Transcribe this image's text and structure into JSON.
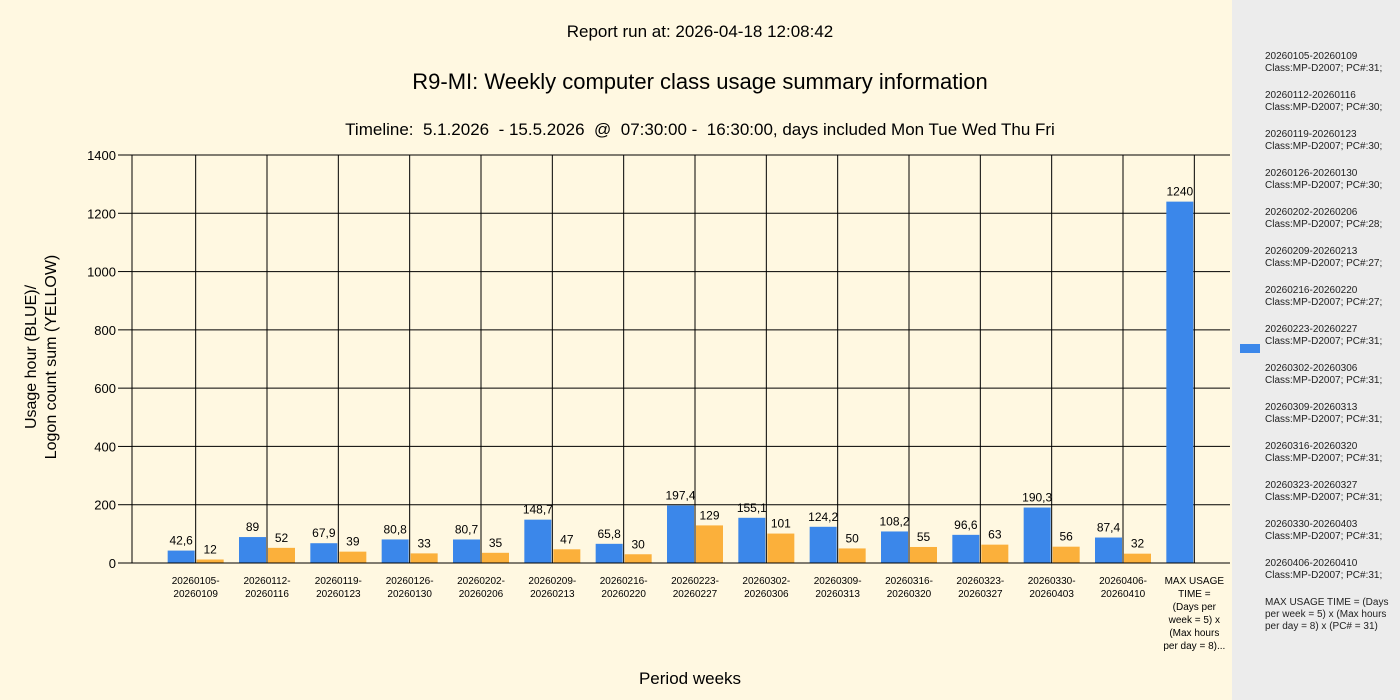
{
  "report_run": "Report run at: 2026-04-18 12:08:42",
  "chart_data": {
    "type": "bar",
    "title": "R9-MI: Weekly computer class usage summary information",
    "subtitle": "Timeline:  5.1.2026  - 15.5.2026  @  07:30:00 -  16:30:00, days included Mon Tue Wed Thu Fri",
    "xlabel": "Period weeks",
    "ylabel_line1": "Usage hour (BLUE)/",
    "ylabel_line2": "Logon count sum (YELLOW)",
    "ylim": [
      0,
      1400
    ],
    "yticks": [
      "0",
      "200",
      "400",
      "600",
      "800",
      "1000",
      "1200",
      "1400"
    ],
    "grid": true,
    "legend_position": "right",
    "colors": {
      "usage": "#3b87ea",
      "logon": "#fbb03b"
    },
    "categories": [
      [
        "20260105-",
        "20260109"
      ],
      [
        "20260112-",
        "20260116"
      ],
      [
        "20260119-",
        "20260123"
      ],
      [
        "20260126-",
        "20260130"
      ],
      [
        "20260202-",
        "20260206"
      ],
      [
        "20260209-",
        "20260213"
      ],
      [
        "20260216-",
        "20260220"
      ],
      [
        "20260223-",
        "20260227"
      ],
      [
        "20260302-",
        "20260306"
      ],
      [
        "20260309-",
        "20260313"
      ],
      [
        "20260316-",
        "20260320"
      ],
      [
        "20260323-",
        "20260327"
      ],
      [
        "20260330-",
        "20260403"
      ],
      [
        "20260406-",
        "20260410"
      ],
      [
        "MAX USAGE",
        "TIME =",
        "(Days per",
        "week = 5) x",
        "(Max hours",
        "per day = 8)..."
      ]
    ],
    "series": [
      {
        "values": [
          42.6,
          89,
          67.9,
          80.8,
          80.7,
          148.7,
          65.8,
          197.4,
          155.1,
          124.2,
          108.2,
          96.6,
          190.3,
          87.4,
          1240
        ],
        "labels": [
          "42,6",
          "89",
          "67,9",
          "80,8",
          "80,7",
          "148,7",
          "65,8",
          "197,4",
          "155,1",
          "124,2",
          "108,2",
          "96,6",
          "190,3",
          "87,4",
          "1240"
        ]
      },
      {
        "values": [
          12,
          52,
          39,
          33,
          35,
          47,
          30,
          129,
          101,
          50,
          55,
          63,
          56,
          32,
          null
        ],
        "labels": [
          "12",
          "52",
          "39",
          "33",
          "35",
          "47",
          "30",
          "129",
          "101",
          "50",
          "55",
          "63",
          "56",
          "32",
          ""
        ]
      }
    ]
  },
  "legend": {
    "items": [
      {
        "period": "20260105-20260109",
        "info": "Class:MP-D2007; PC#:31;"
      },
      {
        "period": "20260112-20260116",
        "info": "Class:MP-D2007; PC#:30;"
      },
      {
        "period": "20260119-20260123",
        "info": "Class:MP-D2007; PC#:30;"
      },
      {
        "period": "20260126-20260130",
        "info": "Class:MP-D2007; PC#:30;"
      },
      {
        "period": "20260202-20260206",
        "info": "Class:MP-D2007; PC#:28;"
      },
      {
        "period": "20260209-20260213",
        "info": "Class:MP-D2007; PC#:27;"
      },
      {
        "period": "20260216-20260220",
        "info": "Class:MP-D2007; PC#:27;"
      },
      {
        "period": "20260223-20260227",
        "info": "Class:MP-D2007; PC#:31;"
      },
      {
        "period": "20260302-20260306",
        "info": "Class:MP-D2007; PC#:31;"
      },
      {
        "period": "20260309-20260313",
        "info": "Class:MP-D2007; PC#:31;"
      },
      {
        "period": "20260316-20260320",
        "info": "Class:MP-D2007; PC#:31;"
      },
      {
        "period": "20260323-20260327",
        "info": "Class:MP-D2007; PC#:31;"
      },
      {
        "period": "20260330-20260403",
        "info": "Class:MP-D2007; PC#:31;"
      },
      {
        "period": "20260406-20260410",
        "info": "Class:MP-D2007; PC#:31;"
      }
    ],
    "max_note": "MAX USAGE TIME = (Days per week = 5) x (Max hours per day = 8) x (PC# = 31)"
  }
}
